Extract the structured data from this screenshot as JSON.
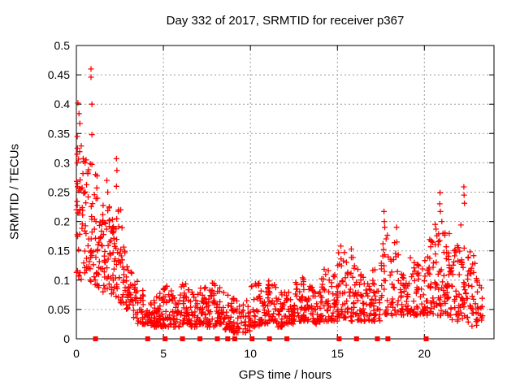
{
  "window": {
    "background": "#ffffff"
  },
  "style": {
    "marker_color": "#ff0000",
    "grid_color": "#9c9c9c",
    "axis_color": "#000000",
    "text_color": "#000000"
  },
  "chart_data": {
    "type": "scatter",
    "title": "Day 332 of 2017, SRMTID for receiver p367",
    "xlabel": "GPS time / hours",
    "ylabel": "SRMTID / TECUs",
    "xlim": [
      0,
      24
    ],
    "ylim": [
      0,
      0.5
    ],
    "xticks": [
      0,
      5,
      10,
      15,
      20
    ],
    "xtick_labels": [
      "0",
      "5",
      "10",
      "15",
      "20"
    ],
    "yticks": [
      0,
      0.05,
      0.1,
      0.15,
      0.2,
      0.25,
      0.3,
      0.35,
      0.4,
      0.45,
      0.5
    ],
    "ytick_labels": [
      "0",
      "0.05",
      "0.1",
      "0.15",
      "0.2",
      "0.25",
      "0.3",
      "0.35",
      "0.4",
      "0.45",
      "0.5"
    ],
    "grid": true,
    "legend": "none",
    "marker": {
      "shape": "plus",
      "color": "#ff0000",
      "size": 7
    },
    "zero_marker": {
      "shape": "filled-square",
      "color": "#ff0000",
      "size": 6
    },
    "zero_marker_hours": [
      1.1,
      4.1,
      5.1,
      6.1,
      7.1,
      8.1,
      8.7,
      9.1,
      10.1,
      11.1,
      12.1,
      15.1,
      16.1,
      17.3,
      17.9,
      20.1
    ],
    "outliers": [
      [
        0.09,
        0.402
      ],
      [
        0.15,
        0.384
      ],
      [
        0.2,
        0.367
      ],
      [
        0.05,
        0.345
      ],
      [
        0.84,
        0.46
      ],
      [
        0.84,
        0.446
      ],
      [
        0.89,
        0.4
      ],
      [
        0.89,
        0.348
      ],
      [
        0.56,
        0.305
      ],
      [
        1.1,
        0.28
      ],
      [
        1.75,
        0.27
      ],
      [
        1.8,
        0.25
      ],
      [
        2.3,
        0.307
      ],
      [
        2.33,
        0.287
      ],
      [
        2.3,
        0.26
      ],
      [
        2.55,
        0.22
      ],
      [
        13.0,
        0.104
      ],
      [
        14.2,
        0.102
      ],
      [
        15.2,
        0.158
      ],
      [
        15.8,
        0.153
      ],
      [
        17.68,
        0.217
      ],
      [
        17.7,
        0.2
      ],
      [
        17.72,
        0.19
      ],
      [
        18.4,
        0.19
      ],
      [
        18.42,
        0.165
      ],
      [
        20.9,
        0.249
      ],
      [
        20.88,
        0.23
      ],
      [
        20.92,
        0.217
      ],
      [
        21.0,
        0.2
      ],
      [
        22.27,
        0.259
      ],
      [
        22.28,
        0.245
      ],
      [
        22.3,
        0.231
      ],
      [
        22.1,
        0.194
      ]
    ],
    "density_bins": [
      {
        "t0": 0.0,
        "t1": 0.25,
        "n": 26,
        "lo": 0.1,
        "hi": 0.355,
        "skew": 1.0
      },
      {
        "t0": 0.25,
        "t1": 0.5,
        "n": 20,
        "lo": 0.1,
        "hi": 0.33,
        "skew": 1.2
      },
      {
        "t0": 0.5,
        "t1": 0.75,
        "n": 16,
        "lo": 0.1,
        "hi": 0.31,
        "skew": 1.1
      },
      {
        "t0": 0.75,
        "t1": 1.0,
        "n": 18,
        "lo": 0.095,
        "hi": 0.3,
        "skew": 1.2
      },
      {
        "t0": 1.0,
        "t1": 1.25,
        "n": 20,
        "lo": 0.09,
        "hi": 0.28,
        "skew": 1.4
      },
      {
        "t0": 1.25,
        "t1": 1.5,
        "n": 18,
        "lo": 0.085,
        "hi": 0.22,
        "skew": 1.3
      },
      {
        "t0": 1.5,
        "t1": 1.75,
        "n": 18,
        "lo": 0.08,
        "hi": 0.24,
        "skew": 1.4
      },
      {
        "t0": 1.75,
        "t1": 2.0,
        "n": 20,
        "lo": 0.08,
        "hi": 0.23,
        "skew": 1.4
      },
      {
        "t0": 2.0,
        "t1": 2.25,
        "n": 22,
        "lo": 0.075,
        "hi": 0.21,
        "skew": 1.3
      },
      {
        "t0": 2.25,
        "t1": 2.5,
        "n": 20,
        "lo": 0.07,
        "hi": 0.24,
        "skew": 1.5
      },
      {
        "t0": 2.5,
        "t1": 2.75,
        "n": 18,
        "lo": 0.06,
        "hi": 0.2,
        "skew": 1.6
      },
      {
        "t0": 2.75,
        "t1": 3.0,
        "n": 18,
        "lo": 0.05,
        "hi": 0.15,
        "skew": 1.5
      },
      {
        "t0": 3.0,
        "t1": 3.25,
        "n": 16,
        "lo": 0.04,
        "hi": 0.12,
        "skew": 1.5
      },
      {
        "t0": 3.25,
        "t1": 3.5,
        "n": 16,
        "lo": 0.035,
        "hi": 0.1,
        "skew": 1.6
      },
      {
        "t0": 3.5,
        "t1": 4.0,
        "n": 30,
        "lo": 0.025,
        "hi": 0.085,
        "skew": 1.7
      },
      {
        "t0": 4.0,
        "t1": 4.5,
        "n": 34,
        "lo": 0.02,
        "hi": 0.07,
        "skew": 1.7
      },
      {
        "t0": 4.5,
        "t1": 5.0,
        "n": 36,
        "lo": 0.02,
        "hi": 0.08,
        "skew": 1.8
      },
      {
        "t0": 5.0,
        "t1": 5.5,
        "n": 34,
        "lo": 0.02,
        "hi": 0.09,
        "skew": 1.8
      },
      {
        "t0": 5.5,
        "t1": 6.0,
        "n": 32,
        "lo": 0.02,
        "hi": 0.08,
        "skew": 1.8
      },
      {
        "t0": 6.0,
        "t1": 6.5,
        "n": 34,
        "lo": 0.025,
        "hi": 0.095,
        "skew": 1.8
      },
      {
        "t0": 6.5,
        "t1": 7.0,
        "n": 32,
        "lo": 0.02,
        "hi": 0.08,
        "skew": 1.8
      },
      {
        "t0": 7.0,
        "t1": 7.5,
        "n": 34,
        "lo": 0.025,
        "hi": 0.09,
        "skew": 1.8
      },
      {
        "t0": 7.5,
        "t1": 8.0,
        "n": 34,
        "lo": 0.02,
        "hi": 0.095,
        "skew": 1.8
      },
      {
        "t0": 8.0,
        "t1": 8.5,
        "n": 34,
        "lo": 0.025,
        "hi": 0.09,
        "skew": 1.8
      },
      {
        "t0": 8.5,
        "t1": 9.0,
        "n": 30,
        "lo": 0.015,
        "hi": 0.075,
        "skew": 1.8
      },
      {
        "t0": 9.0,
        "t1": 9.5,
        "n": 28,
        "lo": 0.01,
        "hi": 0.07,
        "skew": 1.7
      },
      {
        "t0": 9.5,
        "t1": 10.0,
        "n": 24,
        "lo": 0.01,
        "hi": 0.065,
        "skew": 1.6
      },
      {
        "t0": 10.0,
        "t1": 10.5,
        "n": 30,
        "lo": 0.02,
        "hi": 0.1,
        "skew": 1.8
      },
      {
        "t0": 10.5,
        "t1": 11.0,
        "n": 32,
        "lo": 0.025,
        "hi": 0.085,
        "skew": 1.8
      },
      {
        "t0": 11.0,
        "t1": 11.5,
        "n": 32,
        "lo": 0.03,
        "hi": 0.1,
        "skew": 1.8
      },
      {
        "t0": 11.5,
        "t1": 12.0,
        "n": 30,
        "lo": 0.02,
        "hi": 0.08,
        "skew": 1.7
      },
      {
        "t0": 12.0,
        "t1": 12.5,
        "n": 30,
        "lo": 0.025,
        "hi": 0.085,
        "skew": 1.7
      },
      {
        "t0": 12.5,
        "t1": 13.0,
        "n": 32,
        "lo": 0.03,
        "hi": 0.1,
        "skew": 1.7
      },
      {
        "t0": 13.0,
        "t1": 13.5,
        "n": 32,
        "lo": 0.03,
        "hi": 0.105,
        "skew": 1.7
      },
      {
        "t0": 13.5,
        "t1": 14.0,
        "n": 30,
        "lo": 0.025,
        "hi": 0.09,
        "skew": 1.7
      },
      {
        "t0": 14.0,
        "t1": 14.5,
        "n": 32,
        "lo": 0.03,
        "hi": 0.12,
        "skew": 1.7
      },
      {
        "t0": 14.5,
        "t1": 15.0,
        "n": 32,
        "lo": 0.03,
        "hi": 0.11,
        "skew": 1.6
      },
      {
        "t0": 15.0,
        "t1": 15.5,
        "n": 34,
        "lo": 0.035,
        "hi": 0.15,
        "skew": 1.6
      },
      {
        "t0": 15.5,
        "t1": 16.0,
        "n": 32,
        "lo": 0.03,
        "hi": 0.145,
        "skew": 1.7
      },
      {
        "t0": 16.0,
        "t1": 16.5,
        "n": 32,
        "lo": 0.03,
        "hi": 0.12,
        "skew": 1.7
      },
      {
        "t0": 16.5,
        "t1": 17.0,
        "n": 30,
        "lo": 0.03,
        "hi": 0.1,
        "skew": 1.7
      },
      {
        "t0": 17.0,
        "t1": 17.5,
        "n": 30,
        "lo": 0.03,
        "hi": 0.12,
        "skew": 1.7
      },
      {
        "t0": 17.5,
        "t1": 18.0,
        "n": 26,
        "lo": 0.04,
        "hi": 0.18,
        "skew": 1.5
      },
      {
        "t0": 18.0,
        "t1": 18.5,
        "n": 26,
        "lo": 0.04,
        "hi": 0.165,
        "skew": 1.5
      },
      {
        "t0": 18.5,
        "t1": 19.0,
        "n": 28,
        "lo": 0.04,
        "hi": 0.12,
        "skew": 1.6
      },
      {
        "t0": 19.0,
        "t1": 19.5,
        "n": 28,
        "lo": 0.04,
        "hi": 0.14,
        "skew": 1.6
      },
      {
        "t0": 19.5,
        "t1": 20.0,
        "n": 30,
        "lo": 0.04,
        "hi": 0.13,
        "skew": 1.6
      },
      {
        "t0": 20.0,
        "t1": 20.5,
        "n": 34,
        "lo": 0.04,
        "hi": 0.17,
        "skew": 1.5
      },
      {
        "t0": 20.5,
        "t1": 21.0,
        "n": 36,
        "lo": 0.04,
        "hi": 0.2,
        "skew": 1.5
      },
      {
        "t0": 21.0,
        "t1": 21.5,
        "n": 36,
        "lo": 0.04,
        "hi": 0.19,
        "skew": 1.5
      },
      {
        "t0": 21.5,
        "t1": 22.0,
        "n": 34,
        "lo": 0.03,
        "hi": 0.165,
        "skew": 1.5
      },
      {
        "t0": 22.0,
        "t1": 22.5,
        "n": 32,
        "lo": 0.03,
        "hi": 0.17,
        "skew": 1.5
      },
      {
        "t0": 22.5,
        "t1": 23.0,
        "n": 30,
        "lo": 0.02,
        "hi": 0.155,
        "skew": 1.5
      },
      {
        "t0": 23.0,
        "t1": 23.4,
        "n": 18,
        "lo": 0.03,
        "hi": 0.11,
        "skew": 1.5
      }
    ],
    "seed": 42
  }
}
